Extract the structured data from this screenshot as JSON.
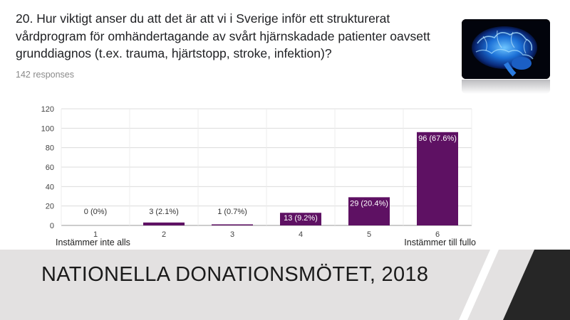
{
  "question": {
    "line1": "20. Hur viktigt anser du att det är att vi i Sverige inför ett strukturerat",
    "line2": "vårdprogram för omhändertagande av svårt hjärnskadade patienter oavsett",
    "line3": "grunddiagnos (t.ex. trauma, hjärtstopp, stroke, infektion)?"
  },
  "responses": "142 responses",
  "footer": {
    "title": "NATIONELLA DONATIONSMÖTET, 2018"
  },
  "colors": {
    "bar": "#5e1163",
    "footer_bg": "#e3e1e1",
    "footer_dark": "#262626"
  },
  "chart_data": {
    "type": "bar",
    "categories": [
      "1",
      "2",
      "3",
      "4",
      "5",
      "6"
    ],
    "values": [
      0,
      3,
      1,
      13,
      29,
      96
    ],
    "data_labels": [
      "0 (0%)",
      "3 (2.1%)",
      "1 (0.7%)",
      "13 (9.2%)",
      "29 (20.4%)",
      "96 (67.6%)"
    ],
    "ylim": [
      0,
      120
    ],
    "yticks": [
      0,
      20,
      40,
      60,
      80,
      100,
      120
    ],
    "end_labels": {
      "low": "Instämmer inte alls",
      "high": "Instämmer till fullo"
    },
    "grid": true,
    "legend": "none"
  }
}
